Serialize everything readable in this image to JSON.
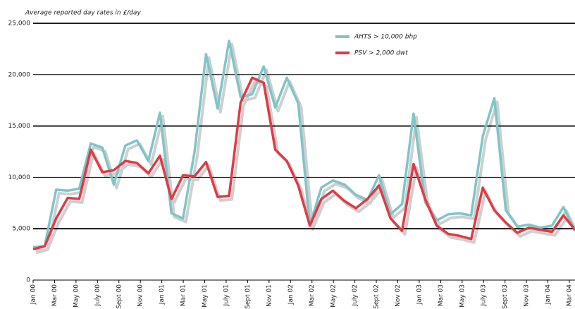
{
  "chart_data": {
    "type": "line",
    "title": "Average reported day rates in £/day",
    "x_labels": [
      "Jan 00",
      "Mar 00",
      "May 00",
      "July 00",
      "Sept 00",
      "Nov 00",
      "Jan 01",
      "Mar 01",
      "May 01",
      "July 01",
      "Sept 01",
      "Nov 01",
      "Jan 02",
      "Mar 02",
      "May 02",
      "July 02",
      "Sept 02",
      "Nov 02",
      "Jan 03",
      "Mar 03",
      "May 03",
      "July 03",
      "Sept 03",
      "Nov 03",
      "Jan 04",
      "Mar 04"
    ],
    "series": [
      {
        "name": "AHTS > 10,000 bhp",
        "color": "#7fc5c8",
        "values": [
          3200,
          3300,
          8800,
          8700,
          8900,
          13300,
          12900,
          9300,
          13100,
          13600,
          11600,
          16300,
          6500,
          6000,
          12500,
          22000,
          16700,
          23300,
          17800,
          18100,
          20800,
          16800,
          19700,
          17200,
          5300,
          9000,
          9700,
          9300,
          8300,
          7800,
          10200,
          6400,
          7400,
          16200,
          7600,
          5800,
          6400,
          6500,
          6300,
          14000,
          17700,
          6800,
          5200,
          5400,
          5100,
          5300,
          7100,
          4800
        ]
      },
      {
        "name": "PSV > 2,000 dwt",
        "color": "#e03a45",
        "values": [
          3000,
          3300,
          6000,
          8000,
          7900,
          12700,
          10500,
          10700,
          11600,
          11400,
          10400,
          12100,
          7900,
          10200,
          10100,
          11500,
          8100,
          8200,
          17300,
          19700,
          19200,
          12700,
          11600,
          9200,
          5300,
          7900,
          8700,
          7700,
          7000,
          7900,
          9200,
          6000,
          4800,
          11300,
          7900,
          5300,
          4500,
          4300,
          4000,
          9000,
          6800,
          5600,
          4600,
          5100,
          4900,
          4700,
          6300,
          4900
        ]
      }
    ],
    "ylim": [
      0,
      25000
    ],
    "yticks": [
      0,
      {
        "value": 5000,
        "label": "5,000"
      },
      {
        "value": 10000,
        "label": "10,000"
      },
      {
        "value": 15000,
        "label": "15,000"
      },
      {
        "value": 20000,
        "label": "20,000"
      },
      {
        "value": 25000,
        "label": "25,000"
      }
    ],
    "grid": true,
    "legend": "top-right"
  }
}
